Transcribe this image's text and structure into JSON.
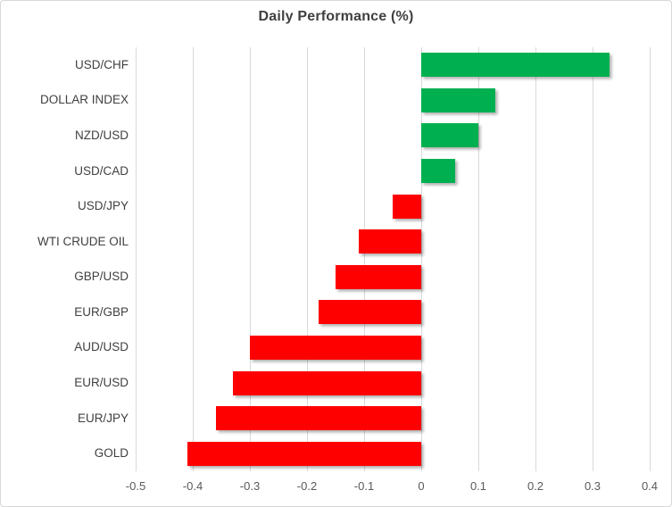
{
  "chart_data": {
    "type": "bar",
    "orientation": "horizontal",
    "title": "Daily Performance (%)",
    "categories": [
      "USD/CHF",
      "DOLLAR INDEX",
      "NZD/USD",
      "USD/CAD",
      "USD/JPY",
      "WTI CRUDE OIL",
      "GBP/USD",
      "EUR/GBP",
      "AUD/USD",
      "EUR/USD",
      "EUR/JPY",
      "GOLD"
    ],
    "values": [
      0.33,
      0.13,
      0.1,
      0.06,
      -0.05,
      -0.11,
      -0.15,
      -0.18,
      -0.3,
      -0.33,
      -0.36,
      -0.41
    ],
    "xlim": [
      -0.5,
      0.4
    ],
    "xticks": [
      "-0.5",
      "-0.4",
      "-0.3",
      "-0.2",
      "-0.1",
      "0",
      "0.1",
      "0.2",
      "0.3",
      "0.4"
    ],
    "grid": "vertical-only",
    "legend": "none",
    "colors": {
      "positive_bar": "#00B050",
      "negative_bar": "#FF0000",
      "gridline": "#D9D9D9",
      "title_text": "#404040",
      "category_text": "#404040",
      "tick_text": "#595959"
    }
  }
}
